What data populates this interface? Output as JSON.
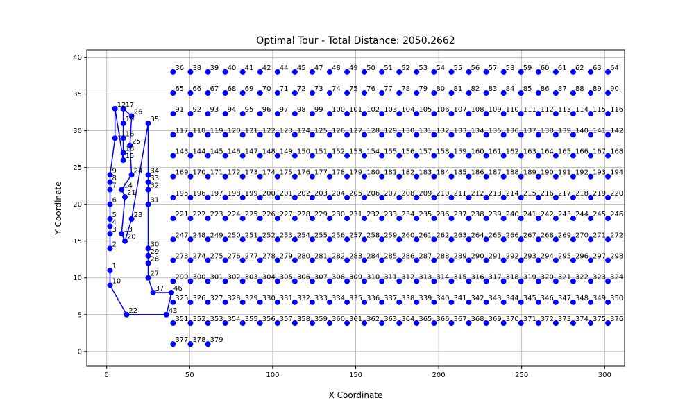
{
  "chart_data": {
    "type": "line",
    "title": "Optimal Tour - Total Distance: 2050.2662",
    "xlabel": "X Coordinate",
    "ylabel": "Y Coordinate",
    "xlim": [
      -12,
      312
    ],
    "ylim": [
      -2,
      41
    ],
    "xticks": [
      0,
      50,
      100,
      150,
      200,
      250,
      300
    ],
    "yticks": [
      0,
      5,
      10,
      15,
      20,
      25,
      30,
      35,
      40
    ],
    "grid": true,
    "color": "#0000ff",
    "series": [
      {
        "name": "",
        "points": [
          {
            "label": "1",
            "x": 2,
            "y": 11
          },
          {
            "label": "10",
            "x": 2,
            "y": 9
          },
          {
            "label": "22",
            "x": 12,
            "y": 5
          },
          {
            "label": "43",
            "x": 36,
            "y": 5
          },
          {
            "label": "46",
            "x": 39,
            "y": 8
          },
          {
            "label": "37",
            "x": 28,
            "y": 8
          },
          {
            "label": "27",
            "x": 25,
            "y": 10
          },
          {
            "label": "28",
            "x": 25,
            "y": 12
          },
          {
            "label": "29",
            "x": 25,
            "y": 13
          },
          {
            "label": "30",
            "x": 25,
            "y": 14
          },
          {
            "label": "31",
            "x": 25,
            "y": 20
          },
          {
            "label": "32",
            "x": 25,
            "y": 22
          },
          {
            "label": "33",
            "x": 25,
            "y": 23
          },
          {
            "label": "34",
            "x": 25,
            "y": 24
          },
          {
            "label": "35",
            "x": 25,
            "y": 31
          },
          {
            "label": "23",
            "x": 15,
            "y": 18
          },
          {
            "label": "20",
            "x": 11,
            "y": 15
          },
          {
            "label": "13",
            "x": 9,
            "y": 16
          },
          {
            "label": "21",
            "x": 11,
            "y": 21
          },
          {
            "label": "14",
            "x": 9,
            "y": 22
          },
          {
            "label": "24",
            "x": 15,
            "y": 24
          },
          {
            "label": "25",
            "x": 14,
            "y": 28
          },
          {
            "label": "26",
            "x": 15,
            "y": 32
          },
          {
            "label": "17",
            "x": 10,
            "y": 33
          },
          {
            "label": "19",
            "x": 10,
            "y": 31
          },
          {
            "label": "16",
            "x": 10,
            "y": 29
          },
          {
            "label": "18",
            "x": 10,
            "y": 27
          },
          {
            "label": "15",
            "x": 10,
            "y": 26
          },
          {
            "label": "12",
            "x": 5,
            "y": 33
          },
          {
            "label": "11",
            "x": 5,
            "y": 29
          },
          {
            "label": "9",
            "x": 2,
            "y": 24
          },
          {
            "label": "8",
            "x": 2,
            "y": 23
          },
          {
            "label": "7",
            "x": 2,
            "y": 22
          },
          {
            "label": "6",
            "x": 2,
            "y": 20
          },
          {
            "label": "5",
            "x": 2,
            "y": 18
          },
          {
            "label": "4",
            "x": 2,
            "y": 17
          },
          {
            "label": "3",
            "x": 2,
            "y": 16
          },
          {
            "label": "2",
            "x": 2,
            "y": 14
          }
        ]
      }
    ],
    "extra_labels": [
      "36",
      "38",
      "39",
      "40",
      "41",
      "42",
      "44",
      "45",
      "47",
      "48",
      "49",
      "50",
      "51",
      "52",
      "53",
      "54",
      "55",
      "56",
      "57",
      "58",
      "59",
      "60",
      "61",
      "62",
      "63",
      "64",
      "65",
      "66",
      "67",
      "68",
      "69",
      "70",
      "71",
      "72",
      "73",
      "74",
      "75",
      "76",
      "77",
      "78",
      "79",
      "80",
      "81",
      "82",
      "83",
      "84",
      "85",
      "86",
      "87",
      "88",
      "89",
      "90",
      "91",
      "92",
      "93",
      "94",
      "95",
      "96",
      "97",
      "98",
      "99",
      "100",
      "101",
      "102",
      "103",
      "104",
      "105",
      "106",
      "107",
      "108",
      "109",
      "110",
      "111",
      "112",
      "113",
      "114",
      "115",
      "116",
      "117",
      "118",
      "119",
      "120",
      "121",
      "122",
      "123",
      "124",
      "125",
      "126",
      "127",
      "128",
      "129",
      "130",
      "131",
      "132",
      "133",
      "134",
      "135",
      "136",
      "137",
      "138",
      "139",
      "140",
      "141",
      "142",
      "143",
      "144",
      "145",
      "146",
      "147",
      "148",
      "149",
      "150",
      "151",
      "152",
      "153",
      "154",
      "155",
      "156",
      "157",
      "158",
      "159",
      "160",
      "161",
      "162",
      "163",
      "164",
      "165",
      "166",
      "167",
      "168",
      "169",
      "170",
      "171",
      "172",
      "173",
      "174",
      "175",
      "176",
      "177",
      "178",
      "179",
      "180",
      "181",
      "182",
      "183",
      "184",
      "185",
      "186",
      "187",
      "188",
      "189",
      "190",
      "191",
      "192",
      "193",
      "194",
      "195",
      "196",
      "197",
      "198",
      "199",
      "200",
      "201",
      "202",
      "203",
      "204",
      "205",
      "206",
      "207",
      "208",
      "209",
      "210",
      "211",
      "212",
      "213",
      "214",
      "215",
      "216",
      "217",
      "218",
      "219",
      "220",
      "221",
      "222",
      "223",
      "224",
      "225",
      "226",
      "227",
      "228",
      "229",
      "230",
      "231",
      "232",
      "233",
      "234",
      "235",
      "236",
      "237",
      "238",
      "239",
      "240",
      "241",
      "242",
      "243",
      "244",
      "245",
      "246",
      "247",
      "248",
      "249",
      "250",
      "251",
      "252",
      "253",
      "254",
      "255",
      "256",
      "257",
      "258",
      "259",
      "260",
      "261",
      "262",
      "263",
      "264",
      "265",
      "266",
      "267",
      "268",
      "269",
      "270",
      "271",
      "272",
      "273",
      "274",
      "275",
      "276",
      "277",
      "278",
      "279",
      "280",
      "281",
      "282",
      "283",
      "284",
      "285",
      "286",
      "287",
      "288",
      "289",
      "290",
      "291",
      "292",
      "293",
      "294",
      "295",
      "296",
      "297",
      "298",
      "299",
      "300",
      "301",
      "302",
      "303",
      "304",
      "305",
      "306",
      "307",
      "308",
      "309",
      "310",
      "311",
      "312",
      "313",
      "314",
      "315",
      "316",
      "317",
      "318",
      "319",
      "320",
      "321",
      "322",
      "323",
      "324",
      "325",
      "326",
      "327",
      "328",
      "329",
      "330",
      "331",
      "332",
      "333",
      "334",
      "335",
      "336",
      "337",
      "338",
      "339",
      "340",
      "341",
      "342",
      "343",
      "344",
      "345",
      "346",
      "347",
      "348",
      "349",
      "350",
      "351",
      "352",
      "353",
      "354",
      "355",
      "356",
      "357",
      "358",
      "359",
      "360",
      "361",
      "362",
      "363",
      "364",
      "365",
      "366",
      "367",
      "368",
      "369",
      "370",
      "371",
      "372",
      "373",
      "374",
      "375",
      "376",
      "377",
      "378",
      "379"
    ]
  }
}
